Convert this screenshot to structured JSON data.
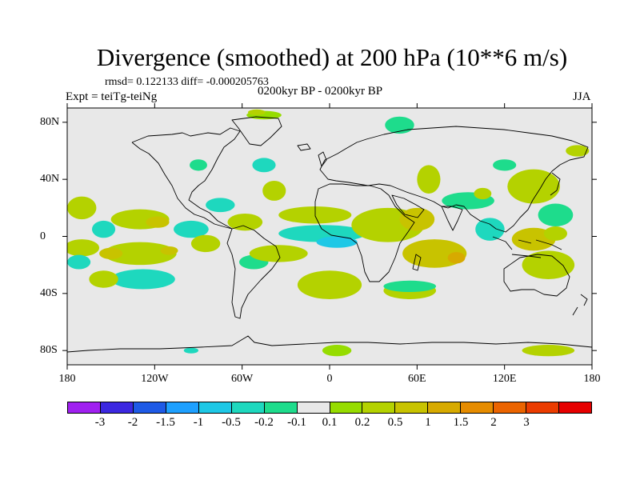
{
  "title": "Divergence (smoothed) at 200 hPa (10**6 m/s)",
  "stats": "rmsd= 0.122133 diff= -0.000205763",
  "experiment": "Expt = teiTg-teiNg",
  "period": "0200kyr BP - 0200kyr BP",
  "season": "JJA",
  "map": {
    "projection": "cylindrical equidistant",
    "lon_range": [
      -180,
      180
    ],
    "lat_range": [
      -90,
      90
    ],
    "background_color": "#e8e8e8",
    "y_ticks": [
      {
        "lat": 80,
        "label": "80N"
      },
      {
        "lat": 40,
        "label": "40N"
      },
      {
        "lat": 0,
        "label": "0"
      },
      {
        "lat": -40,
        "label": "40S"
      },
      {
        "lat": -80,
        "label": "80S"
      }
    ],
    "x_ticks": [
      {
        "lon": -180,
        "label": "180"
      },
      {
        "lon": -120,
        "label": "120W"
      },
      {
        "lon": -60,
        "label": "60W"
      },
      {
        "lon": 0,
        "label": "0"
      },
      {
        "lon": 60,
        "label": "60E"
      },
      {
        "lon": 120,
        "label": "120E"
      },
      {
        "lon": 180,
        "label": "180"
      }
    ]
  },
  "colorbar": {
    "colors": [
      "#a020f0",
      "#3c28e0",
      "#1e5ae6",
      "#1ea0ff",
      "#1ec8e6",
      "#1ed8be",
      "#1edc8c",
      "#e8e8e8",
      "#96dc00",
      "#b4d200",
      "#c8c300",
      "#d7aa00",
      "#e68c00",
      "#eb6400",
      "#eb3c00",
      "#e60000"
    ],
    "labels": [
      "-3",
      "-2",
      "-1.5",
      "-1",
      "-0.5",
      "-0.2",
      "-0.1",
      "0.1",
      "0.2",
      "0.5",
      "1",
      "1.5",
      "2",
      "3"
    ]
  },
  "chart_data": {
    "type": "heatmap",
    "variable": "Divergence (smoothed) at 200 hPa",
    "units": "10**6 m/s",
    "levels": [
      -3,
      -2,
      -1.5,
      -1,
      -0.5,
      -0.2,
      -0.1,
      0.1,
      0.2,
      0.5,
      1,
      1.5,
      2,
      3
    ],
    "field_regions": [
      {
        "lon": -170,
        "lat": 20,
        "rx": 10,
        "ry": 8,
        "value": 0.3
      },
      {
        "lon": -170,
        "lat": -8,
        "rx": 12,
        "ry": 6,
        "value": 0.2
      },
      {
        "lon": -172,
        "lat": -18,
        "rx": 8,
        "ry": 5,
        "value": -0.3
      },
      {
        "lon": -155,
        "lat": 5,
        "rx": 8,
        "ry": 6,
        "value": -0.3
      },
      {
        "lon": -130,
        "lat": 12,
        "rx": 20,
        "ry": 7,
        "value": 0.3
      },
      {
        "lon": -118,
        "lat": 10,
        "rx": 8,
        "ry": 4,
        "value": 0.6
      },
      {
        "lon": -130,
        "lat": -12,
        "rx": 25,
        "ry": 8,
        "value": 0.35
      },
      {
        "lon": -150,
        "lat": -12,
        "rx": 8,
        "ry": 4,
        "value": 0.6
      },
      {
        "lon": -110,
        "lat": -10,
        "rx": 6,
        "ry": 3,
        "value": 0.6
      },
      {
        "lon": -95,
        "lat": 5,
        "rx": 12,
        "ry": 6,
        "value": -0.3
      },
      {
        "lon": -85,
        "lat": -5,
        "rx": 10,
        "ry": 6,
        "value": 0.3
      },
      {
        "lon": -128,
        "lat": -30,
        "rx": 22,
        "ry": 7,
        "value": -0.3
      },
      {
        "lon": -155,
        "lat": -30,
        "rx": 10,
        "ry": 6,
        "value": 0.2
      },
      {
        "lon": -75,
        "lat": 22,
        "rx": 10,
        "ry": 5,
        "value": -0.3
      },
      {
        "lon": -58,
        "lat": 10,
        "rx": 12,
        "ry": 6,
        "value": 0.2
      },
      {
        "lon": -52,
        "lat": -18,
        "rx": 10,
        "ry": 5,
        "value": -0.2
      },
      {
        "lon": -35,
        "lat": -12,
        "rx": 20,
        "ry": 6,
        "value": 0.2
      },
      {
        "lon": -38,
        "lat": 32,
        "rx": 8,
        "ry": 7,
        "value": 0.25
      },
      {
        "lon": -45,
        "lat": 50,
        "rx": 8,
        "ry": 5,
        "value": -0.3
      },
      {
        "lon": -90,
        "lat": 50,
        "rx": 6,
        "ry": 4,
        "value": -0.2
      },
      {
        "lon": -10,
        "lat": 15,
        "rx": 25,
        "ry": 6,
        "value": 0.3
      },
      {
        "lon": -5,
        "lat": 2,
        "rx": 30,
        "ry": 6,
        "value": -0.5
      },
      {
        "lon": 5,
        "lat": -4,
        "rx": 14,
        "ry": 4,
        "value": -0.8
      },
      {
        "lon": 0,
        "lat": -34,
        "rx": 22,
        "ry": 10,
        "value": 0.3
      },
      {
        "lon": 5,
        "lat": -80,
        "rx": 10,
        "ry": 4,
        "value": 0.1
      },
      {
        "lon": -95,
        "lat": -80,
        "rx": 5,
        "ry": 2,
        "value": -0.3
      },
      {
        "lon": 40,
        "lat": 8,
        "rx": 25,
        "ry": 12,
        "value": 0.4
      },
      {
        "lon": 60,
        "lat": 12,
        "rx": 12,
        "ry": 8,
        "value": 0.8
      },
      {
        "lon": 68,
        "lat": 40,
        "rx": 8,
        "ry": 10,
        "value": 0.3
      },
      {
        "lon": 72,
        "lat": -12,
        "rx": 22,
        "ry": 10,
        "value": 0.5
      },
      {
        "lon": 87,
        "lat": -15,
        "rx": 6,
        "ry": 4,
        "value": 1.0
      },
      {
        "lon": 110,
        "lat": 5,
        "rx": 10,
        "ry": 8,
        "value": -0.3
      },
      {
        "lon": 95,
        "lat": 25,
        "rx": 18,
        "ry": 6,
        "value": -0.2
      },
      {
        "lon": 105,
        "lat": 30,
        "rx": 6,
        "ry": 4,
        "value": 0.3
      },
      {
        "lon": 140,
        "lat": 35,
        "rx": 18,
        "ry": 12,
        "value": 0.4
      },
      {
        "lon": 155,
        "lat": 15,
        "rx": 12,
        "ry": 8,
        "value": -0.2
      },
      {
        "lon": 140,
        "lat": -2,
        "rx": 15,
        "ry": 8,
        "value": 0.5
      },
      {
        "lon": 150,
        "lat": -20,
        "rx": 18,
        "ry": 10,
        "value": 0.3
      },
      {
        "lon": 155,
        "lat": 2,
        "rx": 8,
        "ry": 5,
        "value": 0.4
      },
      {
        "lon": 55,
        "lat": -38,
        "rx": 18,
        "ry": 6,
        "value": 0.2
      },
      {
        "lon": 55,
        "lat": -35,
        "rx": 18,
        "ry": 4,
        "value": -0.2
      },
      {
        "lon": 48,
        "lat": 78,
        "rx": 10,
        "ry": 6,
        "value": -0.2
      },
      {
        "lon": -45,
        "lat": 85,
        "rx": 12,
        "ry": 3,
        "value": 0.1
      },
      {
        "lon": -50,
        "lat": 87,
        "rx": 6,
        "ry": 2,
        "value": 0.2
      },
      {
        "lon": 150,
        "lat": -80,
        "rx": 18,
        "ry": 4,
        "value": 0.3
      },
      {
        "lon": 120,
        "lat": 50,
        "rx": 8,
        "ry": 4,
        "value": -0.2
      },
      {
        "lon": 170,
        "lat": 60,
        "rx": 8,
        "ry": 4,
        "value": 0.2
      }
    ]
  }
}
